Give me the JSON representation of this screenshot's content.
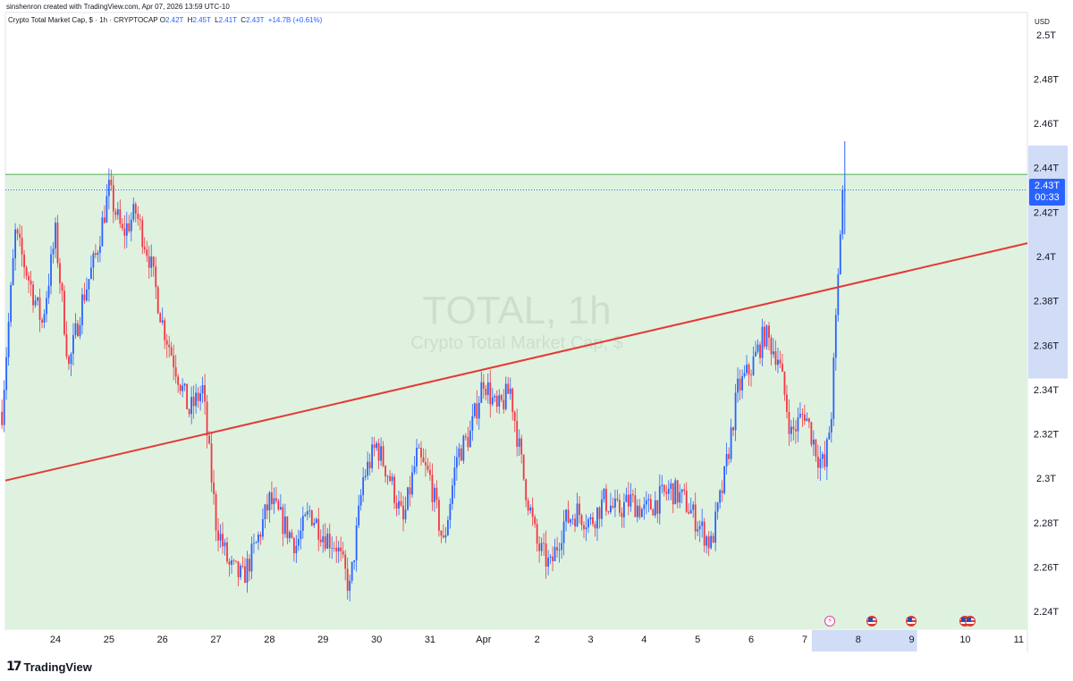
{
  "header": {
    "credit": "sinshenron created with TradingView.com, Apr 07, 2026 13:59 UTC-10",
    "symbol_line": "Crypto Total Market Cap, $ · 1h · CRYPTOCAP",
    "ohlc": {
      "o_label": "O",
      "o_value": "2.42T",
      "h_label": "H",
      "h_value": "2.45T",
      "l_label": "L",
      "l_value": "2.41T",
      "c_label": "C",
      "c_value": "2.43T",
      "change": "+14.7B (+0.61%)"
    }
  },
  "watermark": {
    "ticker": "TOTAL, 1h",
    "name": "Crypto Total Market Cap, $"
  },
  "price_axis": {
    "currency": "USD",
    "labels": [
      "2.5T",
      "2.48T",
      "2.46T",
      "2.44T",
      "2.42T",
      "2.4T",
      "2.38T",
      "2.36T",
      "2.34T",
      "2.32T",
      "2.3T",
      "2.28T",
      "2.26T",
      "2.24T"
    ]
  },
  "last_price": {
    "value": "2.43T",
    "countdown": "00:33"
  },
  "time_axis": {
    "labels": [
      "24",
      "25",
      "26",
      "27",
      "28",
      "29",
      "30",
      "31",
      "Apr",
      "2",
      "3",
      "4",
      "5",
      "6",
      "7",
      "8",
      "9",
      "10",
      "11"
    ]
  },
  "branding": {
    "name": "TradingView"
  },
  "colors": {
    "up": "#2962ff",
    "down": "#f23645",
    "trendline": "#e53935",
    "zone_fill": "#dff2df",
    "zone_border": "#4caf50",
    "accent": "#2962ff"
  },
  "events": [
    "lightning-icon",
    "us-flag-icon",
    "us-flag-icon",
    "us-flag-icon"
  ],
  "chart_data": {
    "type": "candlestick",
    "interval": "1h",
    "ylim": [
      2.232,
      2.51
    ],
    "y_unit": "T USD",
    "x_range": [
      "Mar 23",
      "Apr 11"
    ],
    "range_zone": {
      "top": 2.437,
      "bottom": 2.23
    },
    "trendline": {
      "from": [
        "Mar 23",
        2.299
      ],
      "to": [
        "Apr 11",
        2.406
      ]
    },
    "last_close": 2.43,
    "close_path": [
      [
        "Mar 23 00:00",
        2.33
      ],
      [
        "Mar 23 06:00",
        2.41
      ],
      [
        "Mar 23 12:00",
        2.39
      ],
      [
        "Mar 23 18:00",
        2.37
      ],
      [
        "Mar 24 00:00",
        2.41
      ],
      [
        "Mar 24 06:00",
        2.35
      ],
      [
        "Mar 24 12:00",
        2.38
      ],
      [
        "Mar 24 18:00",
        2.4
      ],
      [
        "Mar 25 00:00",
        2.43
      ],
      [
        "Mar 25 06:00",
        2.41
      ],
      [
        "Mar 25 12:00",
        2.42
      ],
      [
        "Mar 25 18:00",
        2.4
      ],
      [
        "Mar 26 00:00",
        2.37
      ],
      [
        "Mar 26 06:00",
        2.35
      ],
      [
        "Mar 26 12:00",
        2.33
      ],
      [
        "Mar 26 18:00",
        2.34
      ],
      [
        "Mar 27 00:00",
        2.28
      ],
      [
        "Mar 27 06:00",
        2.26
      ],
      [
        "Mar 27 12:00",
        2.255
      ],
      [
        "Mar 27 18:00",
        2.27
      ],
      [
        "Mar 28 00:00",
        2.29
      ],
      [
        "Mar 28 06:00",
        2.28
      ],
      [
        "Mar 28 12:00",
        2.27
      ],
      [
        "Mar 28 18:00",
        2.285
      ],
      [
        "Mar 29 00:00",
        2.275
      ],
      [
        "Mar 29 06:00",
        2.27
      ],
      [
        "Mar 29 12:00",
        2.25
      ],
      [
        "Mar 29 18:00",
        2.3
      ],
      [
        "Mar 30 00:00",
        2.315
      ],
      [
        "Mar 30 06:00",
        2.3
      ],
      [
        "Mar 30 12:00",
        2.28
      ],
      [
        "Mar 30 18:00",
        2.31
      ],
      [
        "Mar 31 00:00",
        2.3
      ],
      [
        "Mar 31 06:00",
        2.27
      ],
      [
        "Mar 31 12:00",
        2.31
      ],
      [
        "Mar 31 18:00",
        2.32
      ],
      [
        "Apr 1 00:00",
        2.345
      ],
      [
        "Apr 1 06:00",
        2.33
      ],
      [
        "Apr 1 12:00",
        2.34
      ],
      [
        "Apr 1 18:00",
        2.3
      ],
      [
        "Apr 2 00:00",
        2.27
      ],
      [
        "Apr 2 06:00",
        2.26
      ],
      [
        "Apr 2 12:00",
        2.28
      ],
      [
        "Apr 2 18:00",
        2.285
      ],
      [
        "Apr 3 00:00",
        2.28
      ],
      [
        "Apr 3 06:00",
        2.29
      ],
      [
        "Apr 3 12:00",
        2.285
      ],
      [
        "Apr 3 18:00",
        2.29
      ],
      [
        "Apr 4 00:00",
        2.285
      ],
      [
        "Apr 4 06:00",
        2.29
      ],
      [
        "Apr 4 12:00",
        2.295
      ],
      [
        "Apr 4 18:00",
        2.29
      ],
      [
        "Apr 5 00:00",
        2.28
      ],
      [
        "Apr 5 06:00",
        2.27
      ],
      [
        "Apr 5 12:00",
        2.3
      ],
      [
        "Apr 5 18:00",
        2.34
      ],
      [
        "Apr 6 00:00",
        2.35
      ],
      [
        "Apr 6 06:00",
        2.365
      ],
      [
        "Apr 6 12:00",
        2.355
      ],
      [
        "Apr 6 18:00",
        2.32
      ],
      [
        "Apr 7 00:00",
        2.33
      ],
      [
        "Apr 7 06:00",
        2.31
      ],
      [
        "Apr 7 09:00",
        2.305
      ],
      [
        "Apr 7 12:00",
        2.33
      ],
      [
        "Apr 7 16:00",
        2.41
      ],
      [
        "Apr 7 18:00",
        2.43
      ]
    ]
  }
}
